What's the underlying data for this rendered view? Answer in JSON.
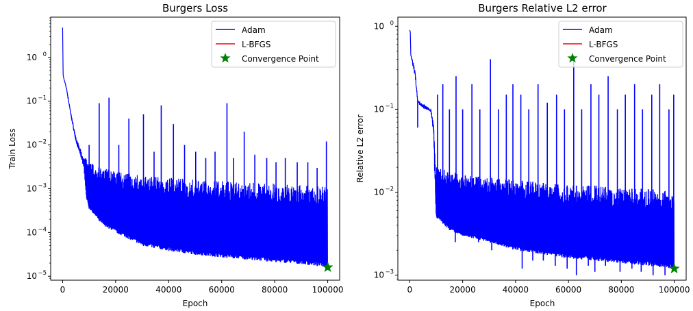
{
  "colors": {
    "adam": "#0000ff",
    "lbfgs": "#ff0000",
    "convergence": "#008000",
    "axes": "#000000",
    "background": "#ffffff"
  },
  "chart_data": [
    {
      "type": "line",
      "title": "Burgers Loss",
      "xlabel": "Epoch",
      "ylabel": "Train Loss",
      "yscale": "log",
      "xlim": [
        -4500,
        104500
      ],
      "ylim_log10": [
        -5.09,
        0.92
      ],
      "x_ticks": [
        0,
        20000,
        40000,
        60000,
        80000,
        100000
      ],
      "y_ticks_exp": [
        0,
        -1,
        -2,
        -3,
        -4,
        -5
      ],
      "grid": false,
      "legend_placement": "top-right",
      "legend": [
        "Adam",
        "L-BFGS",
        "Convergence Point"
      ],
      "series": [
        {
          "name": "Adam",
          "color": "#0000ff",
          "lower_envelope": {
            "x": [
              0,
              200,
              500,
              800,
              1500,
              3000,
              5000,
              8000,
              9000,
              10000,
              15000,
              20000,
              30000,
              40000,
              50000,
              60000,
              70000,
              80000,
              90000,
              100000
            ],
            "y": [
              4.8,
              0.4,
              0.32,
              0.28,
              0.18,
              0.05,
              0.012,
              0.003,
              0.0006,
              0.00035,
              0.00015,
              0.0001,
              5e-05,
              3.8e-05,
              3.1e-05,
              2.7e-05,
              2.4e-05,
              2.1e-05,
              1.9e-05,
              1.6e-05
            ]
          },
          "upper_envelope": {
            "x": [
              0,
              200,
              500,
              800,
              1500,
              3000,
              5000,
              8000,
              9000,
              10000,
              15000,
              20000,
              30000,
              40000,
              50000,
              60000,
              70000,
              80000,
              90000,
              100000
            ],
            "y": [
              4.8,
              0.4,
              0.32,
              0.28,
              0.2,
              0.06,
              0.015,
              0.005,
              0.005,
              0.004,
              0.003,
              0.0025,
              0.002,
              0.0018,
              0.0016,
              0.0015,
              0.0014,
              0.0013,
              0.0012,
              0.0011
            ]
          },
          "spikes": {
            "x": [
              10000,
              13800,
              17500,
              21200,
              25000,
              30500,
              34500,
              37200,
              41800,
              46000,
              50200,
              54000,
              57500,
              62000,
              64500,
              68500,
              72500,
              77000,
              80500,
              84000,
              88500,
              92500,
              96000,
              99500
            ],
            "y": [
              0.01,
              0.09,
              0.12,
              0.01,
              0.04,
              0.05,
              0.007,
              0.08,
              0.03,
              0.01,
              0.007,
              0.005,
              0.007,
              0.09,
              0.005,
              0.02,
              0.006,
              0.005,
              0.004,
              0.005,
              0.004,
              0.004,
              0.003,
              0.012
            ]
          }
        },
        {
          "name": "L-BFGS",
          "color": "#ff0000",
          "x": [],
          "y": []
        }
      ],
      "convergence_point": {
        "x": 100000,
        "y": 1.6e-05
      }
    },
    {
      "type": "line",
      "title": "Burgers Relative L2 error",
      "xlabel": "Epoch",
      "ylabel": "Relative L2 error",
      "yscale": "log",
      "xlim": [
        -4500,
        104500
      ],
      "ylim_log10": [
        -3.06,
        0.11
      ],
      "x_ticks": [
        0,
        20000,
        40000,
        60000,
        80000,
        100000
      ],
      "y_ticks_exp": [
        0,
        -1,
        -2,
        -3
      ],
      "grid": false,
      "legend_placement": "top-right",
      "legend": [
        "Adam",
        "L-BFGS",
        "Convergence Point"
      ],
      "series": [
        {
          "name": "Adam",
          "color": "#0000ff",
          "lower_envelope": {
            "x": [
              0,
              200,
              400,
              1000,
              2000,
              3000,
              4000,
              6000,
              8000,
              9000,
              9500,
              10000,
              15000,
              20000,
              30000,
              40000,
              50000,
              60000,
              70000,
              80000,
              90000,
              100000
            ],
            "y": [
              0.9,
              0.85,
              0.45,
              0.35,
              0.25,
              0.12,
              0.11,
              0.1,
              0.095,
              0.05,
              0.012,
              0.005,
              0.0035,
              0.003,
              0.0025,
              0.002,
              0.0018,
              0.0016,
              0.0015,
              0.0014,
              0.0013,
              0.0012
            ]
          },
          "upper_envelope": {
            "x": [
              0,
              200,
              400,
              1000,
              2000,
              3000,
              4000,
              6000,
              8000,
              9000,
              9500,
              10000,
              15000,
              20000,
              30000,
              40000,
              50000,
              60000,
              70000,
              80000,
              90000,
              100000
            ],
            "y": [
              0.9,
              0.85,
              0.45,
              0.4,
              0.3,
              0.13,
              0.12,
              0.11,
              0.1,
              0.07,
              0.03,
              0.02,
              0.018,
              0.016,
              0.015,
              0.014,
              0.013,
              0.012,
              0.012,
              0.011,
              0.011,
              0.01
            ]
          },
          "spikes": {
            "x": [
              10500,
              12500,
              15000,
              17500,
              20000,
              23500,
              26500,
              30500,
              33500,
              36500,
              39000,
              42000,
              45000,
              48500,
              52000,
              55500,
              58500,
              62000,
              65000,
              68500,
              71500,
              75000,
              78500,
              81500,
              85000,
              88000,
              91500,
              94500,
              98000,
              99800
            ],
            "y": [
              0.15,
              0.2,
              0.1,
              0.25,
              0.1,
              0.2,
              0.1,
              0.4,
              0.1,
              0.15,
              0.2,
              0.15,
              0.1,
              0.2,
              0.12,
              0.15,
              0.1,
              0.4,
              0.1,
              0.2,
              0.15,
              0.25,
              0.1,
              0.15,
              0.2,
              0.1,
              0.15,
              0.2,
              0.1,
              0.15
            ]
          },
          "dips": {
            "x": [
              3000,
              10200,
              17200,
              21000,
              26000,
              31000,
              37500,
              42500,
              46500,
              50500,
              55000,
              59500,
              63000,
              67500,
              70000,
              74000,
              79500,
              84000,
              87500,
              92000,
              96500
            ],
            "y": [
              0.06,
              0.007,
              0.0025,
              0.003,
              0.0025,
              0.002,
              0.0025,
              0.0012,
              0.0015,
              0.0015,
              0.0013,
              0.0012,
              0.001,
              0.0013,
              0.0011,
              0.0013,
              0.0011,
              0.0012,
              0.0011,
              0.001,
              0.001
            ]
          }
        },
        {
          "name": "L-BFGS",
          "color": "#ff0000",
          "x": [],
          "y": []
        }
      ],
      "convergence_point": {
        "x": 100000,
        "y": 0.0012
      }
    }
  ]
}
